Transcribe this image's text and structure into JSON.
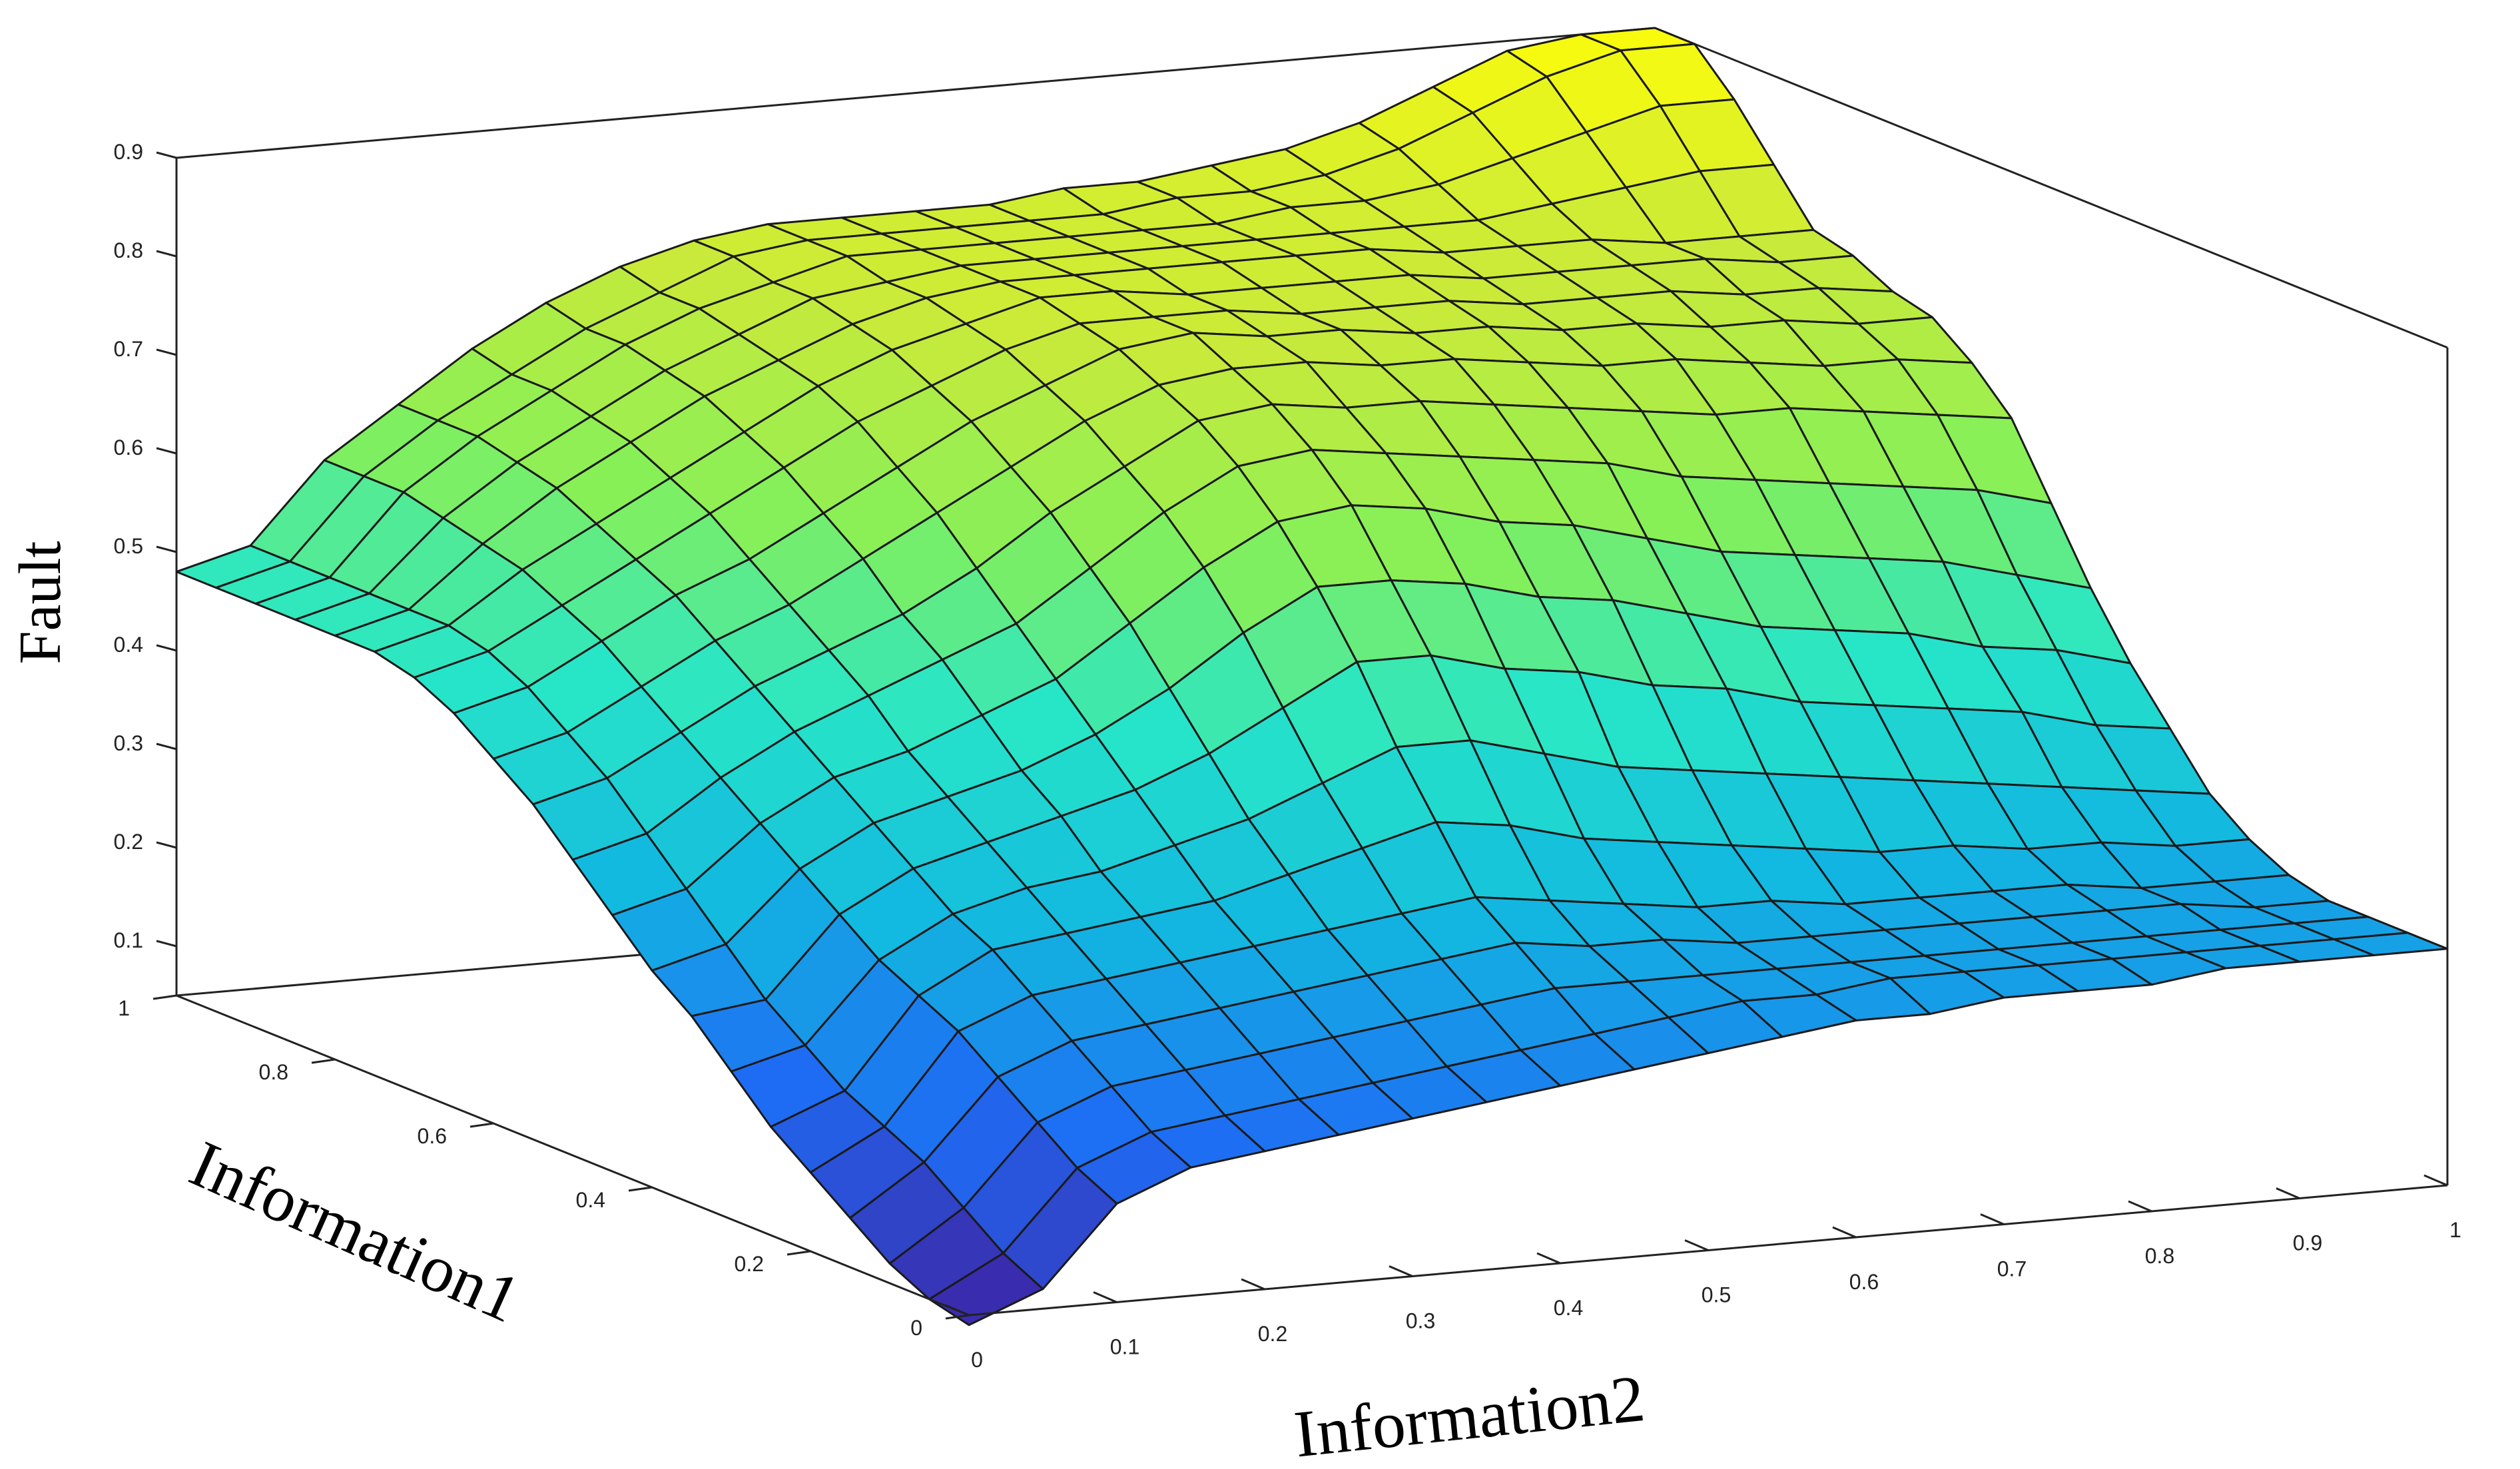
{
  "chart_data": {
    "type": "surface",
    "title": "",
    "xlabel": "Information2",
    "ylabel": "Information1",
    "zlabel": "Fault",
    "xlim": [
      0,
      1
    ],
    "ylim": [
      0,
      1
    ],
    "zlim": [
      0.05,
      0.9
    ],
    "xticks": [
      "0",
      "0.1",
      "0.2",
      "0.3",
      "0.4",
      "0.5",
      "0.6",
      "0.7",
      "0.8",
      "0.9",
      "1"
    ],
    "yticks": [
      "0",
      "0.2",
      "0.4",
      "0.6",
      "0.8",
      "1"
    ],
    "zticks": [
      "0.1",
      "0.2",
      "0.3",
      "0.4",
      "0.5",
      "0.6",
      "0.7",
      "0.8",
      "0.9"
    ],
    "colormap": [
      "#3d26a8",
      "#1e6cf4",
      "#12b8e0",
      "#27e6c8",
      "#86f058",
      "#c9ea3a",
      "#f9fb0e"
    ],
    "grid": "off",
    "x_samples": [
      0,
      0.05,
      0.1,
      0.15,
      0.2,
      0.25,
      0.3,
      0.35,
      0.4,
      0.45,
      0.5,
      0.55,
      0.6,
      0.65,
      0.7,
      0.75,
      0.8,
      0.85,
      0.9,
      0.95,
      1
    ],
    "y_samples": [
      0,
      0.05,
      0.1,
      0.15,
      0.2,
      0.25,
      0.3,
      0.35,
      0.4,
      0.45,
      0.5,
      0.55,
      0.6,
      0.65,
      0.7,
      0.75,
      0.8,
      0.85,
      0.9,
      0.95,
      1
    ],
    "z_values_by_y_rows": [
      [
        0.04,
        0.07,
        0.15,
        0.18,
        0.19,
        0.2,
        0.21,
        0.22,
        0.23,
        0.24,
        0.25,
        0.26,
        0.27,
        0.27,
        0.28,
        0.28,
        0.28,
        0.29,
        0.29,
        0.29,
        0.29
      ],
      [
        0.05,
        0.09,
        0.17,
        0.2,
        0.21,
        0.22,
        0.23,
        0.24,
        0.25,
        0.26,
        0.27,
        0.28,
        0.28,
        0.29,
        0.29,
        0.29,
        0.29,
        0.29,
        0.29,
        0.29,
        0.29
      ],
      [
        0.07,
        0.12,
        0.2,
        0.23,
        0.24,
        0.25,
        0.26,
        0.27,
        0.28,
        0.29,
        0.29,
        0.29,
        0.29,
        0.29,
        0.29,
        0.29,
        0.29,
        0.29,
        0.29,
        0.29,
        0.29
      ],
      [
        0.1,
        0.15,
        0.23,
        0.26,
        0.27,
        0.28,
        0.29,
        0.3,
        0.31,
        0.32,
        0.31,
        0.31,
        0.3,
        0.3,
        0.3,
        0.3,
        0.3,
        0.3,
        0.3,
        0.29,
        0.29
      ],
      [
        0.13,
        0.17,
        0.26,
        0.29,
        0.3,
        0.31,
        0.32,
        0.33,
        0.34,
        0.35,
        0.34,
        0.33,
        0.32,
        0.32,
        0.31,
        0.31,
        0.31,
        0.31,
        0.3,
        0.3,
        0.3
      ],
      [
        0.16,
        0.19,
        0.28,
        0.32,
        0.33,
        0.34,
        0.35,
        0.37,
        0.39,
        0.41,
        0.4,
        0.38,
        0.37,
        0.36,
        0.35,
        0.34,
        0.34,
        0.33,
        0.33,
        0.32,
        0.32
      ],
      [
        0.2,
        0.22,
        0.3,
        0.34,
        0.36,
        0.37,
        0.39,
        0.41,
        0.44,
        0.47,
        0.47,
        0.45,
        0.43,
        0.42,
        0.41,
        0.4,
        0.39,
        0.38,
        0.37,
        0.36,
        0.35
      ],
      [
        0.24,
        0.25,
        0.33,
        0.37,
        0.39,
        0.41,
        0.43,
        0.46,
        0.5,
        0.54,
        0.54,
        0.52,
        0.51,
        0.49,
        0.48,
        0.46,
        0.45,
        0.44,
        0.43,
        0.41,
        0.4
      ],
      [
        0.27,
        0.29,
        0.36,
        0.4,
        0.42,
        0.44,
        0.47,
        0.51,
        0.56,
        0.6,
        0.6,
        0.59,
        0.57,
        0.56,
        0.54,
        0.52,
        0.51,
        0.5,
        0.48,
        0.47,
        0.45
      ],
      [
        0.31,
        0.33,
        0.39,
        0.43,
        0.45,
        0.48,
        0.51,
        0.56,
        0.61,
        0.65,
        0.66,
        0.65,
        0.63,
        0.62,
        0.6,
        0.58,
        0.57,
        0.56,
        0.55,
        0.53,
        0.51
      ],
      [
        0.35,
        0.37,
        0.42,
        0.46,
        0.49,
        0.52,
        0.55,
        0.6,
        0.65,
        0.69,
        0.7,
        0.69,
        0.68,
        0.67,
        0.66,
        0.64,
        0.63,
        0.62,
        0.61,
        0.6,
        0.58
      ],
      [
        0.39,
        0.41,
        0.45,
        0.49,
        0.52,
        0.55,
        0.59,
        0.64,
        0.68,
        0.72,
        0.73,
        0.72,
        0.72,
        0.71,
        0.7,
        0.69,
        0.68,
        0.68,
        0.67,
        0.66,
        0.65
      ],
      [
        0.42,
        0.44,
        0.48,
        0.52,
        0.55,
        0.59,
        0.63,
        0.67,
        0.71,
        0.74,
        0.75,
        0.75,
        0.74,
        0.74,
        0.73,
        0.72,
        0.72,
        0.71,
        0.7,
        0.7,
        0.69
      ],
      [
        0.45,
        0.47,
        0.51,
        0.55,
        0.58,
        0.62,
        0.66,
        0.7,
        0.73,
        0.76,
        0.77,
        0.76,
        0.76,
        0.75,
        0.75,
        0.74,
        0.74,
        0.73,
        0.73,
        0.72,
        0.72
      ],
      [
        0.47,
        0.49,
        0.53,
        0.57,
        0.61,
        0.65,
        0.69,
        0.72,
        0.75,
        0.77,
        0.77,
        0.77,
        0.76,
        0.76,
        0.76,
        0.75,
        0.75,
        0.75,
        0.74,
        0.74,
        0.73
      ],
      [
        0.48,
        0.5,
        0.55,
        0.59,
        0.63,
        0.67,
        0.71,
        0.74,
        0.76,
        0.78,
        0.78,
        0.77,
        0.77,
        0.77,
        0.77,
        0.76,
        0.76,
        0.76,
        0.76,
        0.75,
        0.75
      ],
      [
        0.48,
        0.5,
        0.56,
        0.61,
        0.65,
        0.69,
        0.72,
        0.75,
        0.77,
        0.78,
        0.78,
        0.78,
        0.78,
        0.78,
        0.78,
        0.77,
        0.77,
        0.77,
        0.76,
        0.76,
        0.76
      ],
      [
        0.48,
        0.5,
        0.57,
        0.62,
        0.66,
        0.7,
        0.73,
        0.76,
        0.77,
        0.78,
        0.78,
        0.78,
        0.78,
        0.78,
        0.78,
        0.78,
        0.78,
        0.79,
        0.8,
        0.81,
        0.81
      ],
      [
        0.48,
        0.5,
        0.58,
        0.63,
        0.67,
        0.71,
        0.74,
        0.76,
        0.78,
        0.78,
        0.78,
        0.78,
        0.78,
        0.78,
        0.79,
        0.79,
        0.8,
        0.82,
        0.84,
        0.86,
        0.86
      ],
      [
        0.48,
        0.5,
        0.58,
        0.63,
        0.67,
        0.71,
        0.74,
        0.77,
        0.78,
        0.78,
        0.78,
        0.78,
        0.78,
        0.79,
        0.79,
        0.8,
        0.82,
        0.85,
        0.88,
        0.9,
        0.9
      ],
      [
        0.48,
        0.5,
        0.58,
        0.63,
        0.68,
        0.72,
        0.75,
        0.77,
        0.78,
        0.78,
        0.78,
        0.78,
        0.79,
        0.79,
        0.8,
        0.81,
        0.83,
        0.86,
        0.89,
        0.9,
        0.9
      ]
    ]
  }
}
